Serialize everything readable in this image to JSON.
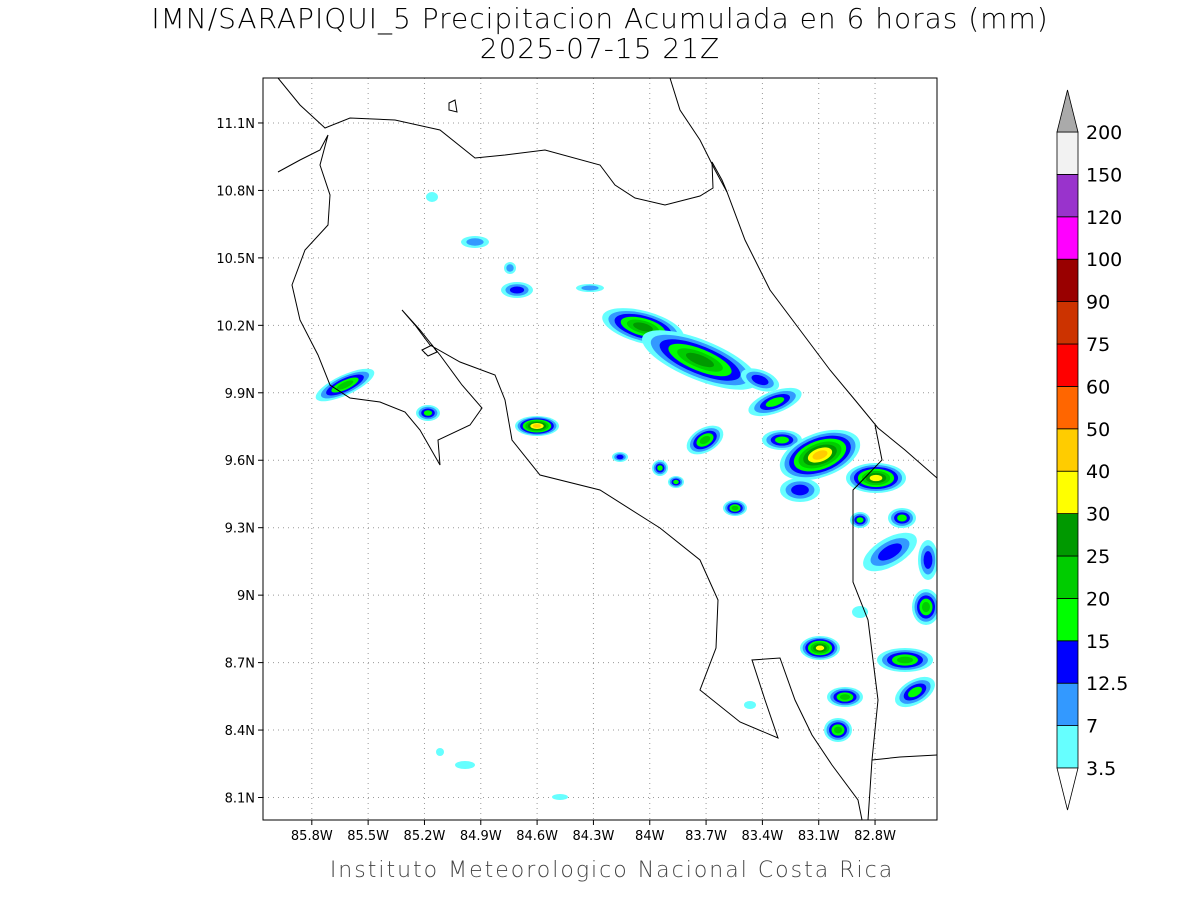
{
  "map": {
    "title": "IMN/SARAPIQUI_5 Precipitacion Acumulada en 6 horas (mm)",
    "subtitle": "2025-07-15 21Z",
    "footer": "Instituto Meteorologico Nacional Costa Rica",
    "xlim": [
      -86.06,
      -82.47
    ],
    "ylim": [
      8.0,
      11.3
    ],
    "xticks": [
      {
        "value": -85.8,
        "label": "85.8W"
      },
      {
        "value": -85.5,
        "label": "85.5W"
      },
      {
        "value": -85.2,
        "label": "85.2W"
      },
      {
        "value": -84.9,
        "label": "84.9W"
      },
      {
        "value": -84.6,
        "label": "84.6W"
      },
      {
        "value": -84.3,
        "label": "84.3W"
      },
      {
        "value": -84.0,
        "label": "84W"
      },
      {
        "value": -83.7,
        "label": "83.7W"
      },
      {
        "value": -83.4,
        "label": "83.4W"
      },
      {
        "value": -83.1,
        "label": "83.1W"
      },
      {
        "value": -82.8,
        "label": "82.8W"
      }
    ],
    "yticks": [
      {
        "value": 11.1,
        "label": "11.1N"
      },
      {
        "value": 10.8,
        "label": "10.8N"
      },
      {
        "value": 10.5,
        "label": "10.5N"
      },
      {
        "value": 10.2,
        "label": "10.2N"
      },
      {
        "value": 9.9,
        "label": "9.9N"
      },
      {
        "value": 9.6,
        "label": "9.6N"
      },
      {
        "value": 9.3,
        "label": "9.3N"
      },
      {
        "value": 9.0,
        "label": "9N"
      },
      {
        "value": 8.7,
        "label": "8.7N"
      },
      {
        "value": 8.4,
        "label": "8.4N"
      },
      {
        "value": 8.1,
        "label": "8.1N"
      }
    ],
    "grid": true,
    "colorbar": {
      "levels": [
        3.5,
        7,
        12.5,
        15,
        20,
        25,
        30,
        40,
        50,
        60,
        75,
        90,
        100,
        120,
        150,
        200
      ],
      "colors": [
        "#ffffff",
        "#66ffff",
        "#3399ff",
        "#0000ff",
        "#00ff00",
        "#00cc00",
        "#009900",
        "#ffff00",
        "#ffcc00",
        "#ff6600",
        "#ff0000",
        "#cc3300",
        "#990000",
        "#ff00ff",
        "#9933cc",
        "#f2f2f2",
        "#aaaaaa"
      ]
    }
  }
}
